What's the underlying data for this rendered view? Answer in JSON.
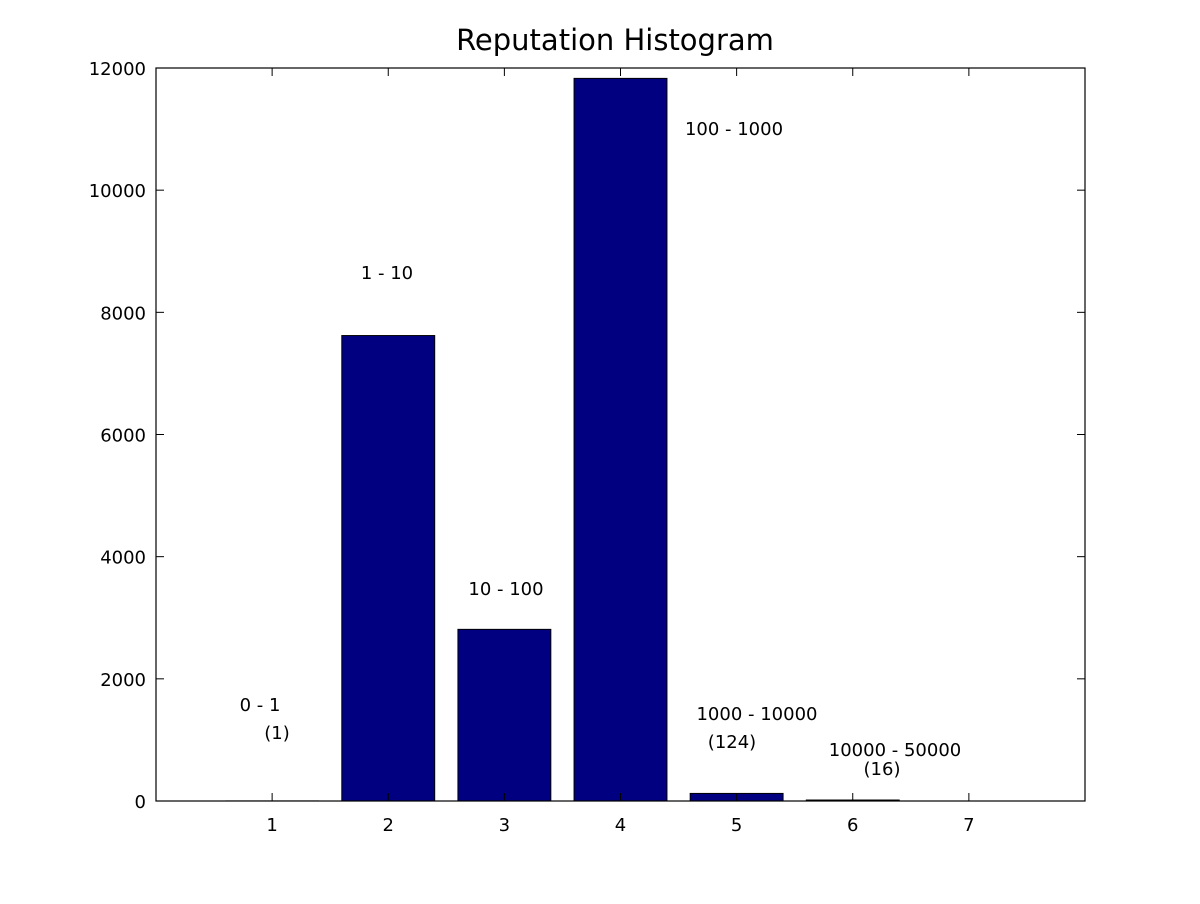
{
  "chart_data": {
    "type": "bar",
    "title": "Reputation Histogram",
    "xlabel": "",
    "ylabel": "",
    "categories": [
      "1",
      "2",
      "3",
      "4",
      "5",
      "6",
      "7"
    ],
    "values": [
      1,
      7620,
      2810,
      11830,
      124,
      16,
      0
    ],
    "xlim": [
      0,
      8
    ],
    "ylim": [
      0,
      12000
    ],
    "y_ticks": [
      "0",
      "2000",
      "4000",
      "6000",
      "8000",
      "10000",
      "12000"
    ],
    "x_ticks": [
      "1",
      "2",
      "3",
      "4",
      "5",
      "6",
      "7"
    ],
    "grid": false,
    "legend": "none",
    "bar_color": "#000080",
    "annotations": [
      {
        "category": "1",
        "range": "0 - 1",
        "count": "(1)"
      },
      {
        "category": "2",
        "range": "1 - 10",
        "count": ""
      },
      {
        "category": "3",
        "range": "10 - 100",
        "count": ""
      },
      {
        "category": "4",
        "range": "100 - 1000",
        "count": ""
      },
      {
        "category": "5",
        "range": "1000 - 10000",
        "count": "(124)"
      },
      {
        "category": "6",
        "range": "10000 - 50000",
        "count": "(16)"
      }
    ]
  }
}
